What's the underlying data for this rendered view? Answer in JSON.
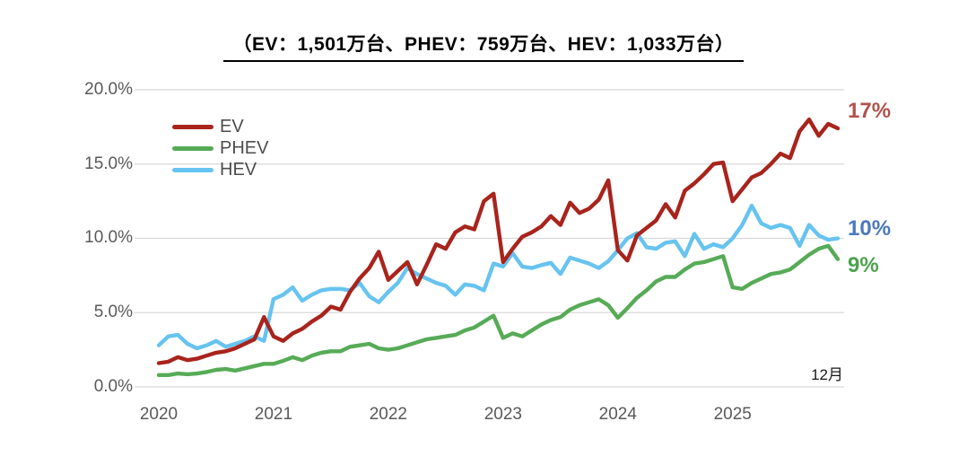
{
  "title": "（EV：1,501万台、PHEV：759万台、HEV：1,033万台）",
  "chart_data": {
    "type": "line",
    "x_start": "2020-01",
    "x_end": "2025-12",
    "x_interval": "monthly",
    "x_tick_labels": [
      "2020",
      "2021",
      "2022",
      "2023",
      "2024",
      "2025"
    ],
    "y_ticks": [
      {
        "label": "0.0%",
        "value": 0
      },
      {
        "label": "5.0%",
        "value": 5
      },
      {
        "label": "10.0%",
        "value": 10
      },
      {
        "label": "15.0%",
        "value": 15
      },
      {
        "label": "20.0%",
        "value": 20
      }
    ],
    "ylim": [
      0,
      20
    ],
    "grid": "horizontal-only",
    "gridline_color": "#d9d9d9",
    "axis_label_color": "#595959",
    "legend_position": "top-left-inside",
    "annotation": "12月",
    "series": [
      {
        "name": "EV",
        "color": "#a8241c",
        "end_label": "17%",
        "end_label_color": "#b0544d",
        "values": [
          1.6,
          1.7,
          2.0,
          1.8,
          1.9,
          2.1,
          2.3,
          2.4,
          2.6,
          2.9,
          3.2,
          4.7,
          3.4,
          3.1,
          3.6,
          3.9,
          4.4,
          4.8,
          5.4,
          5.2,
          6.4,
          7.3,
          8.0,
          9.1,
          7.2,
          7.8,
          8.4,
          6.9,
          8.2,
          9.6,
          9.3,
          10.4,
          10.8,
          10.6,
          12.5,
          13.0,
          8.4,
          9.3,
          10.1,
          10.4,
          10.8,
          11.5,
          10.9,
          12.4,
          11.7,
          12.0,
          12.6,
          13.9,
          9.2,
          8.5,
          10.2,
          10.7,
          11.2,
          12.3,
          11.4,
          13.2,
          13.7,
          14.3,
          15.0,
          15.1,
          12.5,
          13.3,
          14.1,
          14.4,
          15.0,
          15.7,
          15.4,
          17.2,
          18.0,
          16.9,
          17.7,
          17.4
        ]
      },
      {
        "name": "PHEV",
        "color": "#57ab57",
        "end_label": "9%",
        "end_label_color": "#4da24d",
        "values": [
          0.8,
          0.8,
          0.9,
          0.85,
          0.9,
          1.0,
          1.15,
          1.2,
          1.1,
          1.25,
          1.4,
          1.55,
          1.55,
          1.75,
          2.0,
          1.8,
          2.1,
          2.3,
          2.4,
          2.4,
          2.7,
          2.8,
          2.9,
          2.6,
          2.5,
          2.6,
          2.8,
          3.0,
          3.2,
          3.3,
          3.4,
          3.5,
          3.8,
          4.0,
          4.4,
          4.8,
          3.3,
          3.6,
          3.4,
          3.8,
          4.2,
          4.5,
          4.7,
          5.2,
          5.5,
          5.7,
          5.9,
          5.5,
          4.65,
          5.3,
          6.0,
          6.5,
          7.1,
          7.4,
          7.4,
          7.9,
          8.3,
          8.4,
          8.6,
          8.8,
          6.7,
          6.6,
          7.0,
          7.3,
          7.6,
          7.7,
          7.9,
          8.4,
          8.9,
          9.3,
          9.5,
          8.6
        ]
      },
      {
        "name": "HEV",
        "color": "#67c3ef",
        "end_label": "10%",
        "end_label_color": "#4b79bd",
        "values": [
          2.8,
          3.4,
          3.5,
          2.9,
          2.6,
          2.8,
          3.1,
          2.7,
          2.9,
          3.1,
          3.4,
          3.1,
          5.9,
          6.2,
          6.7,
          5.8,
          6.2,
          6.5,
          6.6,
          6.6,
          6.5,
          7.0,
          6.1,
          5.7,
          6.4,
          7.0,
          8.0,
          7.6,
          7.3,
          7.0,
          6.8,
          6.2,
          6.9,
          6.8,
          6.5,
          8.3,
          8.1,
          9.0,
          8.1,
          8.0,
          8.2,
          8.35,
          7.6,
          8.7,
          8.5,
          8.3,
          8.0,
          8.45,
          9.2,
          10.0,
          10.35,
          9.4,
          9.3,
          9.7,
          9.8,
          8.8,
          10.3,
          9.3,
          9.6,
          9.4,
          10.0,
          10.9,
          12.2,
          11.0,
          10.7,
          10.9,
          10.7,
          9.5,
          10.9,
          10.2,
          9.9,
          10.0
        ]
      }
    ]
  }
}
